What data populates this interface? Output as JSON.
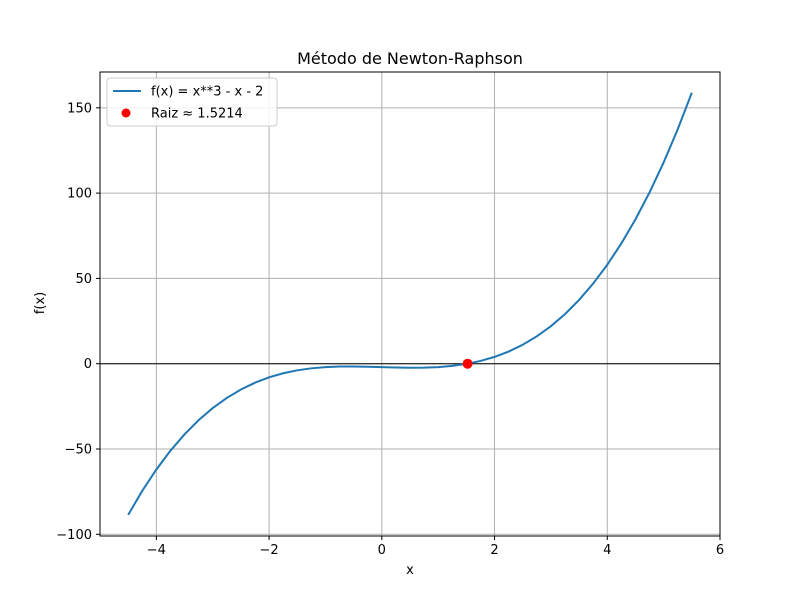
{
  "chart_data": {
    "type": "line",
    "title": "Método de Newton-Raphson",
    "xlabel": "x",
    "ylabel": "f(x)",
    "xlim": [
      -5,
      6
    ],
    "ylim": [
      -101,
      171
    ],
    "xticks": [
      -4,
      -2,
      0,
      2,
      4,
      6
    ],
    "yticks": [
      -100,
      -50,
      0,
      50,
      100,
      150
    ],
    "xtick_labels": [
      "−4",
      "−2",
      "0",
      "2",
      "4",
      "6"
    ],
    "ytick_labels": [
      "−100",
      "−50",
      "0",
      "50",
      "100",
      "150"
    ],
    "grid": true,
    "legend_position": "top-left",
    "horizontal_reference_line": 0,
    "series": [
      {
        "name": "f(x) = x**3 - x - 2",
        "color": "#1f77b4",
        "x": [
          -4.5,
          -4.25,
          -4.0,
          -3.75,
          -3.5,
          -3.25,
          -3.0,
          -2.75,
          -2.5,
          -2.25,
          -2.0,
          -1.75,
          -1.5,
          -1.25,
          -1.0,
          -0.75,
          -0.5,
          -0.25,
          0.0,
          0.25,
          0.5,
          0.75,
          1.0,
          1.25,
          1.5,
          1.75,
          2.0,
          2.25,
          2.5,
          2.75,
          3.0,
          3.25,
          3.5,
          3.75,
          4.0,
          4.25,
          4.5,
          4.75,
          5.0,
          5.25,
          5.5
        ],
        "y": [
          -88.63,
          -74.52,
          -62.0,
          -50.98,
          -41.38,
          -33.08,
          -26.0,
          -20.05,
          -15.13,
          -11.14,
          -8.0,
          -5.61,
          -3.88,
          -2.7,
          -2.0,
          -1.67,
          -1.63,
          -1.77,
          -2.0,
          -2.23,
          -2.38,
          -2.33,
          -2.0,
          -1.3,
          -0.13,
          1.61,
          4.0,
          7.14,
          11.13,
          16.05,
          22.0,
          29.08,
          37.38,
          46.98,
          58.0,
          70.52,
          84.63,
          100.42,
          118.0,
          137.45,
          158.88
        ]
      },
      {
        "name": "Raiz ≈ 1.5214",
        "type": "scatter",
        "color": "#ff0000",
        "x": [
          1.5214
        ],
        "y": [
          0
        ]
      }
    ]
  }
}
